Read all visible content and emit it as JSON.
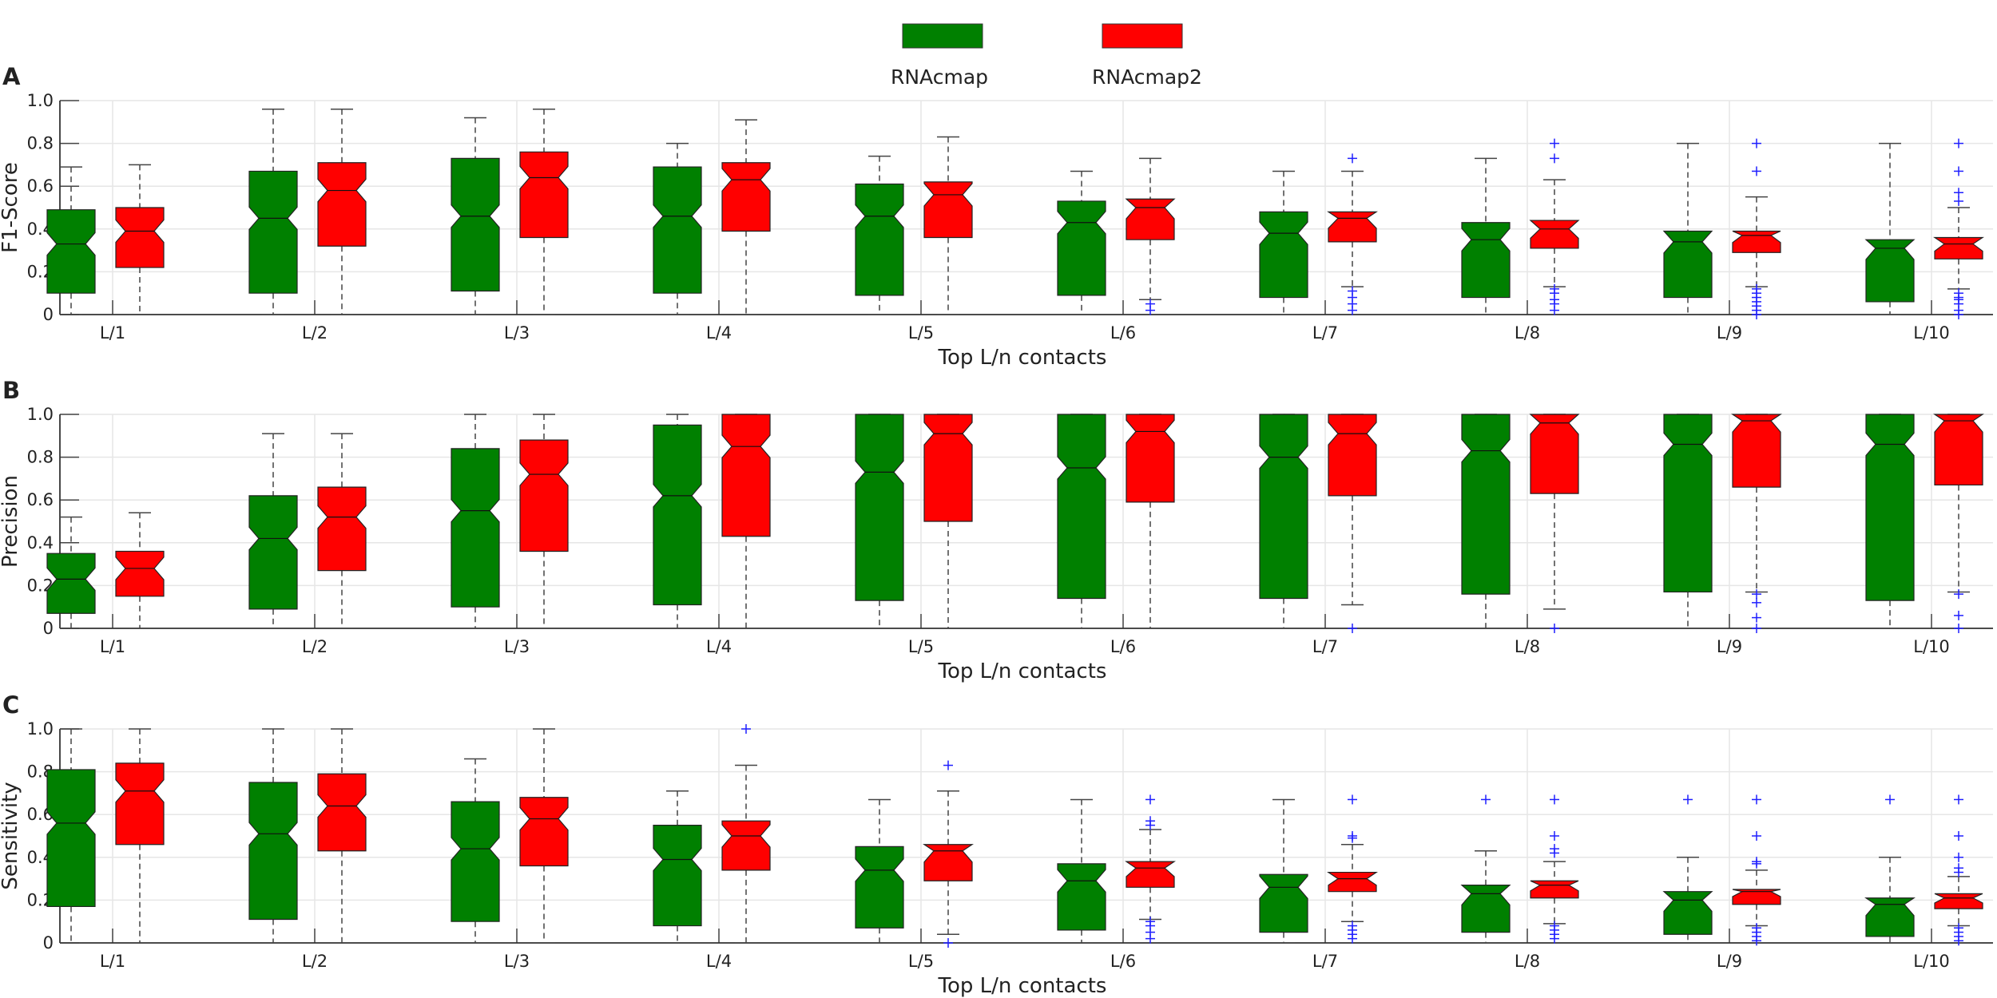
{
  "legend": {
    "entries": [
      {
        "label": "RNAcmap",
        "color": "#008000"
      },
      {
        "label": "RNAcmap2",
        "color": "#ff0000"
      }
    ]
  },
  "colors": {
    "outlier": "#1f1fff",
    "whisker": "#444444",
    "grid": "#e6e6e6"
  },
  "chart_data": [
    {
      "type": "box",
      "panel_letter": "A",
      "ylabel": "F1-Score",
      "xlabel": "Top L/n contacts",
      "ylim": [
        0,
        1
      ],
      "yticks": [
        "0",
        "0.2",
        "0.4",
        "0.6",
        "0.8",
        "1.0"
      ],
      "categories": [
        "L/1",
        "L/2",
        "L/3",
        "L/4",
        "L/5",
        "L/6",
        "L/7",
        "L/8",
        "L/9",
        "L/10"
      ],
      "grid": true,
      "series": [
        {
          "name": "RNAcmap",
          "color": "#008000",
          "boxes": [
            {
              "min": 0,
              "q1": 0.1,
              "median": 0.33,
              "q3": 0.49,
              "max": 0.69,
              "outliers": []
            },
            {
              "min": 0,
              "q1": 0.1,
              "median": 0.45,
              "q3": 0.67,
              "max": 0.96,
              "outliers": []
            },
            {
              "min": 0,
              "q1": 0.11,
              "median": 0.46,
              "q3": 0.73,
              "max": 0.92,
              "outliers": []
            },
            {
              "min": 0,
              "q1": 0.1,
              "median": 0.46,
              "q3": 0.69,
              "max": 0.8,
              "outliers": []
            },
            {
              "min": 0,
              "q1": 0.09,
              "median": 0.46,
              "q3": 0.61,
              "max": 0.74,
              "outliers": []
            },
            {
              "min": 0,
              "q1": 0.09,
              "median": 0.43,
              "q3": 0.53,
              "max": 0.67,
              "outliers": []
            },
            {
              "min": 0,
              "q1": 0.08,
              "median": 0.38,
              "q3": 0.48,
              "max": 0.67,
              "outliers": []
            },
            {
              "min": 0,
              "q1": 0.08,
              "median": 0.35,
              "q3": 0.43,
              "max": 0.73,
              "outliers": []
            },
            {
              "min": 0,
              "q1": 0.08,
              "median": 0.34,
              "q3": 0.39,
              "max": 0.8,
              "outliers": []
            },
            {
              "min": 0,
              "q1": 0.06,
              "median": 0.31,
              "q3": 0.35,
              "max": 0.8,
              "outliers": []
            }
          ]
        },
        {
          "name": "RNAcmap2",
          "color": "#ff0000",
          "boxes": [
            {
              "min": 0,
              "q1": 0.22,
              "median": 0.39,
              "q3": 0.5,
              "max": 0.7,
              "outliers": []
            },
            {
              "min": 0,
              "q1": 0.32,
              "median": 0.58,
              "q3": 0.71,
              "max": 0.96,
              "outliers": []
            },
            {
              "min": 0,
              "q1": 0.36,
              "median": 0.64,
              "q3": 0.76,
              "max": 0.96,
              "outliers": []
            },
            {
              "min": 0,
              "q1": 0.39,
              "median": 0.63,
              "q3": 0.71,
              "max": 0.91,
              "outliers": []
            },
            {
              "min": 0,
              "q1": 0.36,
              "median": 0.56,
              "q3": 0.62,
              "max": 0.83,
              "outliers": []
            },
            {
              "min": 0.07,
              "q1": 0.35,
              "median": 0.5,
              "q3": 0.54,
              "max": 0.73,
              "outliers": [
                0.05,
                0.02
              ]
            },
            {
              "min": 0.13,
              "q1": 0.34,
              "median": 0.45,
              "q3": 0.48,
              "max": 0.67,
              "outliers": [
                0.73,
                0.11,
                0.08,
                0.05,
                0.02
              ]
            },
            {
              "min": 0.13,
              "q1": 0.31,
              "median": 0.4,
              "q3": 0.44,
              "max": 0.63,
              "outliers": [
                0.8,
                0.73,
                0.12,
                0.1,
                0.07,
                0.05,
                0.02
              ]
            },
            {
              "min": 0.13,
              "q1": 0.29,
              "median": 0.37,
              "q3": 0.39,
              "max": 0.55,
              "outliers": [
                0.8,
                0.67,
                0.12,
                0.1,
                0.08,
                0.06,
                0.04,
                0.02,
                0
              ]
            },
            {
              "min": 0.12,
              "q1": 0.26,
              "median": 0.33,
              "q3": 0.36,
              "max": 0.5,
              "outliers": [
                0.8,
                0.67,
                0.57,
                0.53,
                0.1,
                0.08,
                0.07,
                0.05,
                0.02,
                0
              ]
            }
          ]
        }
      ]
    },
    {
      "type": "box",
      "panel_letter": "B",
      "ylabel": "Precision",
      "xlabel": "Top L/n contacts",
      "ylim": [
        0,
        1
      ],
      "yticks": [
        "0",
        "0.2",
        "0.4",
        "0.6",
        "0.8",
        "1.0"
      ],
      "categories": [
        "L/1",
        "L/2",
        "L/3",
        "L/4",
        "L/5",
        "L/6",
        "L/7",
        "L/8",
        "L/9",
        "L/10"
      ],
      "grid": true,
      "series": [
        {
          "name": "RNAcmap",
          "color": "#008000",
          "boxes": [
            {
              "min": 0,
              "q1": 0.07,
              "median": 0.23,
              "q3": 0.35,
              "max": 0.52,
              "outliers": []
            },
            {
              "min": 0,
              "q1": 0.09,
              "median": 0.42,
              "q3": 0.62,
              "max": 0.91,
              "outliers": []
            },
            {
              "min": 0,
              "q1": 0.1,
              "median": 0.55,
              "q3": 0.84,
              "max": 1.0,
              "outliers": []
            },
            {
              "min": 0,
              "q1": 0.11,
              "median": 0.62,
              "q3": 0.95,
              "max": 1.0,
              "outliers": []
            },
            {
              "min": 0,
              "q1": 0.13,
              "median": 0.73,
              "q3": 1.0,
              "max": 1.0,
              "outliers": []
            },
            {
              "min": 0,
              "q1": 0.14,
              "median": 0.75,
              "q3": 1.0,
              "max": 1.0,
              "outliers": []
            },
            {
              "min": 0,
              "q1": 0.14,
              "median": 0.8,
              "q3": 1.0,
              "max": 1.0,
              "outliers": []
            },
            {
              "min": 0,
              "q1": 0.16,
              "median": 0.83,
              "q3": 1.0,
              "max": 1.0,
              "outliers": []
            },
            {
              "min": 0,
              "q1": 0.17,
              "median": 0.86,
              "q3": 1.0,
              "max": 1.0,
              "outliers": []
            },
            {
              "min": 0,
              "q1": 0.13,
              "median": 0.86,
              "q3": 1.0,
              "max": 1.0,
              "outliers": []
            }
          ]
        },
        {
          "name": "RNAcmap2",
          "color": "#ff0000",
          "boxes": [
            {
              "min": 0,
              "q1": 0.15,
              "median": 0.28,
              "q3": 0.36,
              "max": 0.54,
              "outliers": []
            },
            {
              "min": 0,
              "q1": 0.27,
              "median": 0.52,
              "q3": 0.66,
              "max": 0.91,
              "outliers": []
            },
            {
              "min": 0,
              "q1": 0.36,
              "median": 0.72,
              "q3": 0.88,
              "max": 1.0,
              "outliers": []
            },
            {
              "min": 0,
              "q1": 0.43,
              "median": 0.85,
              "q3": 1.0,
              "max": 1.0,
              "outliers": []
            },
            {
              "min": 0,
              "q1": 0.5,
              "median": 0.91,
              "q3": 1.0,
              "max": 1.0,
              "outliers": []
            },
            {
              "min": 0,
              "q1": 0.59,
              "median": 0.92,
              "q3": 1.0,
              "max": 1.0,
              "outliers": []
            },
            {
              "min": 0.11,
              "q1": 0.62,
              "median": 0.91,
              "q3": 1.0,
              "max": 1.0,
              "outliers": [
                0
              ]
            },
            {
              "min": 0.09,
              "q1": 0.63,
              "median": 0.96,
              "q3": 1.0,
              "max": 1.0,
              "outliers": [
                0
              ]
            },
            {
              "min": 0.17,
              "q1": 0.66,
              "median": 0.97,
              "q3": 1.0,
              "max": 1.0,
              "outliers": [
                0.16,
                0.12,
                0.05,
                0
              ]
            },
            {
              "min": 0.17,
              "q1": 0.67,
              "median": 0.97,
              "q3": 1.0,
              "max": 1.0,
              "outliers": [
                0.16,
                0.06,
                0
              ]
            }
          ]
        }
      ]
    },
    {
      "type": "box",
      "panel_letter": "C",
      "ylabel": "Sensitivity",
      "xlabel": "Top L/n contacts",
      "ylim": [
        0,
        1
      ],
      "yticks": [
        "0",
        "0.2",
        "0.4",
        "0.6",
        "0.8",
        "1.0"
      ],
      "categories": [
        "L/1",
        "L/2",
        "L/3",
        "L/4",
        "L/5",
        "L/6",
        "L/7",
        "L/8",
        "L/9",
        "L/10"
      ],
      "grid": true,
      "series": [
        {
          "name": "RNAcmap",
          "color": "#008000",
          "boxes": [
            {
              "min": 0,
              "q1": 0.17,
              "median": 0.56,
              "q3": 0.81,
              "max": 1.0,
              "outliers": []
            },
            {
              "min": 0,
              "q1": 0.11,
              "median": 0.51,
              "q3": 0.75,
              "max": 1.0,
              "outliers": []
            },
            {
              "min": 0,
              "q1": 0.1,
              "median": 0.44,
              "q3": 0.66,
              "max": 0.86,
              "outliers": []
            },
            {
              "min": 0,
              "q1": 0.08,
              "median": 0.39,
              "q3": 0.55,
              "max": 0.71,
              "outliers": []
            },
            {
              "min": 0,
              "q1": 0.07,
              "median": 0.34,
              "q3": 0.45,
              "max": 0.67,
              "outliers": []
            },
            {
              "min": 0,
              "q1": 0.06,
              "median": 0.29,
              "q3": 0.37,
              "max": 0.67,
              "outliers": []
            },
            {
              "min": 0,
              "q1": 0.05,
              "median": 0.26,
              "q3": 0.32,
              "max": 0.67,
              "outliers": []
            },
            {
              "min": 0,
              "q1": 0.05,
              "median": 0.23,
              "q3": 0.27,
              "max": 0.43,
              "outliers": [
                0.67
              ]
            },
            {
              "min": 0,
              "q1": 0.04,
              "median": 0.2,
              "q3": 0.24,
              "max": 0.4,
              "outliers": [
                0.67
              ]
            },
            {
              "min": 0,
              "q1": 0.03,
              "median": 0.18,
              "q3": 0.21,
              "max": 0.4,
              "outliers": [
                0.67
              ]
            }
          ]
        },
        {
          "name": "RNAcmap2",
          "color": "#ff0000",
          "boxes": [
            {
              "min": 0,
              "q1": 0.46,
              "median": 0.71,
              "q3": 0.84,
              "max": 1.0,
              "outliers": []
            },
            {
              "min": 0,
              "q1": 0.43,
              "median": 0.64,
              "q3": 0.79,
              "max": 1.0,
              "outliers": []
            },
            {
              "min": 0,
              "q1": 0.36,
              "median": 0.58,
              "q3": 0.68,
              "max": 1.0,
              "outliers": []
            },
            {
              "min": 0,
              "q1": 0.34,
              "median": 0.5,
              "q3": 0.57,
              "max": 0.83,
              "outliers": [
                1.0
              ]
            },
            {
              "min": 0.04,
              "q1": 0.29,
              "median": 0.43,
              "q3": 0.46,
              "max": 0.71,
              "outliers": [
                0.83,
                0
              ]
            },
            {
              "min": 0.11,
              "q1": 0.26,
              "median": 0.35,
              "q3": 0.38,
              "max": 0.53,
              "outliers": [
                0.67,
                0.57,
                0.55,
                0.1,
                0.08,
                0.05,
                0.02
              ]
            },
            {
              "min": 0.1,
              "q1": 0.24,
              "median": 0.3,
              "q3": 0.33,
              "max": 0.46,
              "outliers": [
                0.67,
                0.5,
                0.49,
                0.08,
                0.06,
                0.04,
                0.02
              ]
            },
            {
              "min": 0.09,
              "q1": 0.21,
              "median": 0.27,
              "q3": 0.29,
              "max": 0.38,
              "outliers": [
                0.67,
                0.5,
                0.44,
                0.42,
                0.08,
                0.06,
                0.04,
                0.02
              ]
            },
            {
              "min": 0.08,
              "q1": 0.18,
              "median": 0.24,
              "q3": 0.25,
              "max": 0.34,
              "outliers": [
                0.67,
                0.5,
                0.38,
                0.37,
                0.07,
                0.05,
                0.03,
                0.01
              ]
            },
            {
              "min": 0.08,
              "q1": 0.16,
              "median": 0.21,
              "q3": 0.23,
              "max": 0.31,
              "outliers": [
                0.67,
                0.5,
                0.4,
                0.35,
                0.33,
                0.07,
                0.05,
                0.03,
                0.01
              ]
            }
          ]
        }
      ]
    }
  ]
}
